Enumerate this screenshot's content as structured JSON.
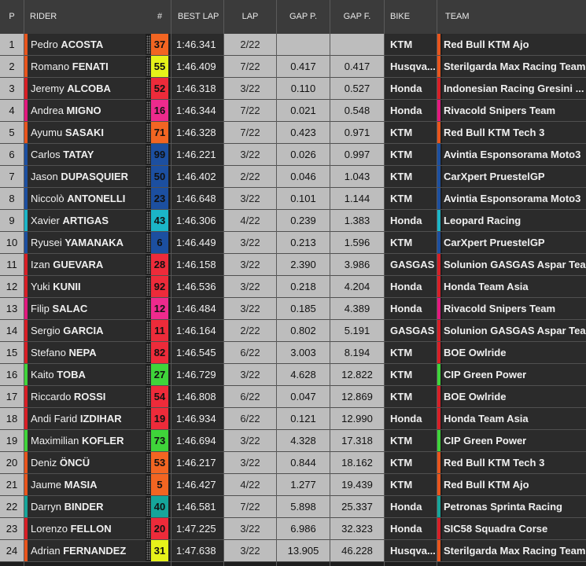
{
  "headers": {
    "p": "P",
    "rider": "RIDER",
    "num": "#",
    "best_lap": "BEST LAP",
    "lap": "LAP",
    "gap_p": "GAP P.",
    "gap_f": "GAP F.",
    "bike": "BIKE",
    "team": "TEAM"
  },
  "rows": [
    {
      "pos": "1",
      "first": "Pedro",
      "last": "ACOSTA",
      "num": "37",
      "num_color": "#f26522",
      "best": "1:46.341",
      "lap": "2/22",
      "gap_p": "",
      "gap_f": "",
      "bike": "KTM",
      "team": "Red Bull KTM Ajo",
      "team_color": "#e8541c"
    },
    {
      "pos": "2",
      "first": "Romano",
      "last": "FENATI",
      "num": "55",
      "num_color": "#e6f21a",
      "best": "1:46.409",
      "lap": "7/22",
      "gap_p": "0.417",
      "gap_f": "0.417",
      "bike": "Husqva...",
      "team": "Sterilgarda Max Racing Team",
      "team_color": "#e8541c"
    },
    {
      "pos": "3",
      "first": "Jeremy",
      "last": "ALCOBA",
      "num": "52",
      "num_color": "#ed2b3a",
      "best": "1:46.318",
      "lap": "3/22",
      "gap_p": "0.110",
      "gap_f": "0.527",
      "bike": "Honda",
      "team": "Indonesian Racing Gresini ...",
      "team_color": "#d81f26"
    },
    {
      "pos": "4",
      "first": "Andrea",
      "last": "MIGNO",
      "num": "16",
      "num_color": "#ee2a8d",
      "best": "1:46.344",
      "lap": "7/22",
      "gap_p": "0.021",
      "gap_f": "0.548",
      "bike": "Honda",
      "team": "Rivacold Snipers Team",
      "team_color": "#e2187e"
    },
    {
      "pos": "5",
      "first": "Ayumu",
      "last": "SASAKI",
      "num": "71",
      "num_color": "#f26522",
      "best": "1:46.328",
      "lap": "7/22",
      "gap_p": "0.423",
      "gap_f": "0.971",
      "bike": "KTM",
      "team": "Red Bull KTM Tech 3",
      "team_color": "#e8541c"
    },
    {
      "pos": "6",
      "first": "Carlos",
      "last": "TATAY",
      "num": "99",
      "num_color": "#1c4fa0",
      "best": "1:46.221",
      "lap": "3/22",
      "gap_p": "0.026",
      "gap_f": "0.997",
      "bike": "KTM",
      "team": "Avintia Esponsorama Moto3",
      "team_color": "#1c4fa0"
    },
    {
      "pos": "7",
      "first": "Jason",
      "last": "DUPASQUIER",
      "num": "50",
      "num_color": "#1c4fa0",
      "best": "1:46.402",
      "lap": "2/22",
      "gap_p": "0.046",
      "gap_f": "1.043",
      "bike": "KTM",
      "team": "CarXpert PruestelGP",
      "team_color": "#1c4fa0"
    },
    {
      "pos": "8",
      "first": "Niccolò",
      "last": "ANTONELLI",
      "num": "23",
      "num_color": "#1c4fa0",
      "best": "1:46.648",
      "lap": "3/22",
      "gap_p": "0.101",
      "gap_f": "1.144",
      "bike": "KTM",
      "team": "Avintia Esponsorama Moto3",
      "team_color": "#1c4fa0"
    },
    {
      "pos": "9",
      "first": "Xavier",
      "last": "ARTIGAS",
      "num": "43",
      "num_color": "#1bb5c7",
      "best": "1:46.306",
      "lap": "4/22",
      "gap_p": "0.239",
      "gap_f": "1.383",
      "bike": "Honda",
      "team": "Leopard Racing",
      "team_color": "#1bb5c7"
    },
    {
      "pos": "10",
      "first": "Ryusei",
      "last": "YAMANAKA",
      "num": "6",
      "num_color": "#1c4fa0",
      "best": "1:46.449",
      "lap": "3/22",
      "gap_p": "0.213",
      "gap_f": "1.596",
      "bike": "KTM",
      "team": "CarXpert PruestelGP",
      "team_color": "#1c4fa0"
    },
    {
      "pos": "11",
      "first": "Izan",
      "last": "GUEVARA",
      "num": "28",
      "num_color": "#ed2b3a",
      "best": "1:46.158",
      "lap": "3/22",
      "gap_p": "2.390",
      "gap_f": "3.986",
      "bike": "GASGAS",
      "team": "Solunion GASGAS Aspar Tea...",
      "team_color": "#d81f26"
    },
    {
      "pos": "12",
      "first": "Yuki",
      "last": "KUNII",
      "num": "92",
      "num_color": "#ed2b3a",
      "best": "1:46.536",
      "lap": "3/22",
      "gap_p": "0.218",
      "gap_f": "4.204",
      "bike": "Honda",
      "team": "Honda Team Asia",
      "team_color": "#d81f26"
    },
    {
      "pos": "13",
      "first": "Filip",
      "last": "SALAC",
      "num": "12",
      "num_color": "#ee2a8d",
      "best": "1:46.484",
      "lap": "3/22",
      "gap_p": "0.185",
      "gap_f": "4.389",
      "bike": "Honda",
      "team": "Rivacold Snipers Team",
      "team_color": "#e2187e"
    },
    {
      "pos": "14",
      "first": "Sergio",
      "last": "GARCIA",
      "num": "11",
      "num_color": "#ed2b3a",
      "best": "1:46.164",
      "lap": "2/22",
      "gap_p": "0.802",
      "gap_f": "5.191",
      "bike": "GASGAS",
      "team": "Solunion GASGAS Aspar Tea...",
      "team_color": "#d81f26"
    },
    {
      "pos": "15",
      "first": "Stefano",
      "last": "NEPA",
      "num": "82",
      "num_color": "#ed2b3a",
      "best": "1:46.545",
      "lap": "6/22",
      "gap_p": "3.003",
      "gap_f": "8.194",
      "bike": "KTM",
      "team": "BOE Owlride",
      "team_color": "#d81f26"
    },
    {
      "pos": "16",
      "first": "Kaito",
      "last": "TOBA",
      "num": "27",
      "num_color": "#3fd43a",
      "best": "1:46.729",
      "lap": "3/22",
      "gap_p": "4.628",
      "gap_f": "12.822",
      "bike": "KTM",
      "team": "CIP Green Power",
      "team_color": "#3fd43a"
    },
    {
      "pos": "17",
      "first": "Riccardo",
      "last": "ROSSI",
      "num": "54",
      "num_color": "#ed2b3a",
      "best": "1:46.808",
      "lap": "6/22",
      "gap_p": "0.047",
      "gap_f": "12.869",
      "bike": "KTM",
      "team": "BOE Owlride",
      "team_color": "#d81f26"
    },
    {
      "pos": "18",
      "first": "Andi Farid",
      "last": "IZDIHAR",
      "num": "19",
      "num_color": "#ed2b3a",
      "best": "1:46.934",
      "lap": "6/22",
      "gap_p": "0.121",
      "gap_f": "12.990",
      "bike": "Honda",
      "team": "Honda Team Asia",
      "team_color": "#d81f26"
    },
    {
      "pos": "19",
      "first": "Maximilian",
      "last": "KOFLER",
      "num": "73",
      "num_color": "#3fd43a",
      "best": "1:46.694",
      "lap": "3/22",
      "gap_p": "4.328",
      "gap_f": "17.318",
      "bike": "KTM",
      "team": "CIP Green Power",
      "team_color": "#3fd43a"
    },
    {
      "pos": "20",
      "first": "Deniz",
      "last": "ÖNCÜ",
      "num": "53",
      "num_color": "#f26522",
      "best": "1:46.217",
      "lap": "3/22",
      "gap_p": "0.844",
      "gap_f": "18.162",
      "bike": "KTM",
      "team": "Red Bull KTM Tech 3",
      "team_color": "#e8541c"
    },
    {
      "pos": "21",
      "first": "Jaume",
      "last": "MASIA",
      "num": "5",
      "num_color": "#f26522",
      "best": "1:46.427",
      "lap": "4/22",
      "gap_p": "1.277",
      "gap_f": "19.439",
      "bike": "KTM",
      "team": "Red Bull KTM Ajo",
      "team_color": "#e8541c"
    },
    {
      "pos": "22",
      "first": "Darryn",
      "last": "BINDER",
      "num": "40",
      "num_color": "#16a59a",
      "best": "1:46.581",
      "lap": "7/22",
      "gap_p": "5.898",
      "gap_f": "25.337",
      "bike": "Honda",
      "team": "Petronas Sprinta Racing",
      "team_color": "#16a59a"
    },
    {
      "pos": "23",
      "first": "Lorenzo",
      "last": "FELLON",
      "num": "20",
      "num_color": "#ed2b3a",
      "best": "1:47.225",
      "lap": "3/22",
      "gap_p": "6.986",
      "gap_f": "32.323",
      "bike": "Honda",
      "team": "SIC58 Squadra Corse",
      "team_color": "#d81f26"
    },
    {
      "pos": "24",
      "first": "Adrian",
      "last": "FERNANDEZ",
      "num": "31",
      "num_color": "#e6f21a",
      "best": "1:47.638",
      "lap": "3/22",
      "gap_p": "13.905",
      "gap_f": "46.228",
      "bike": "Husqva...",
      "team": "Sterilgarda Max Racing Team",
      "team_color": "#e8541c"
    }
  ]
}
